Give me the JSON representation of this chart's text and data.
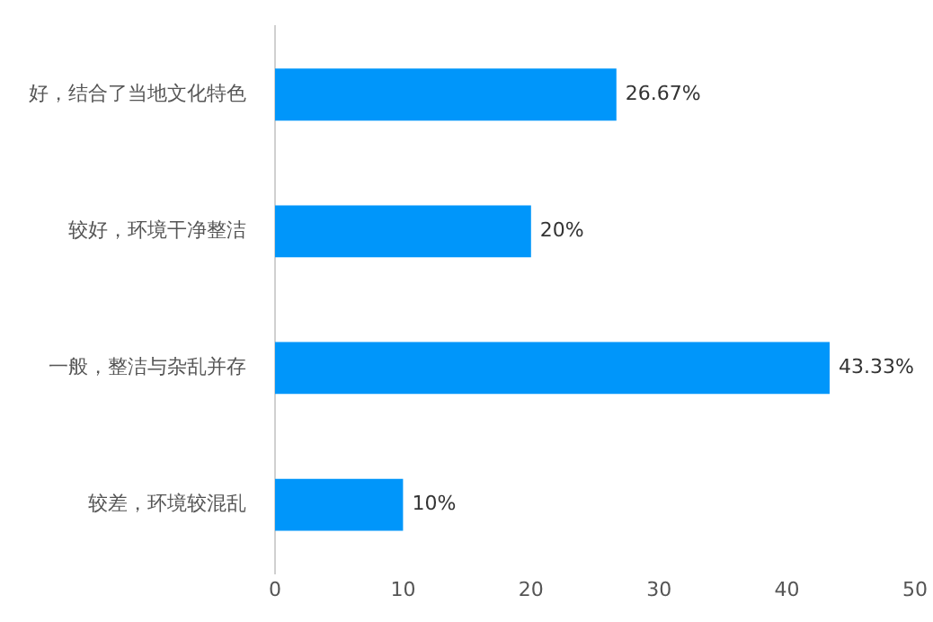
{
  "chart_data": {
    "type": "bar",
    "orientation": "horizontal",
    "categories": [
      "好，结合了当地文化特色",
      "较好，环境干净整洁",
      "一般，整洁与杂乱并存",
      "较差，环境较混乱"
    ],
    "values": [
      26.67,
      20,
      43.33,
      10
    ],
    "color": "#0096fa",
    "value_labels": [
      "26.67%",
      "20%",
      "43.33%",
      "10%"
    ],
    "xlim": [
      0,
      50
    ],
    "xticks": [
      0,
      10,
      20,
      30,
      40,
      50
    ],
    "grid": false,
    "legend": false
  }
}
